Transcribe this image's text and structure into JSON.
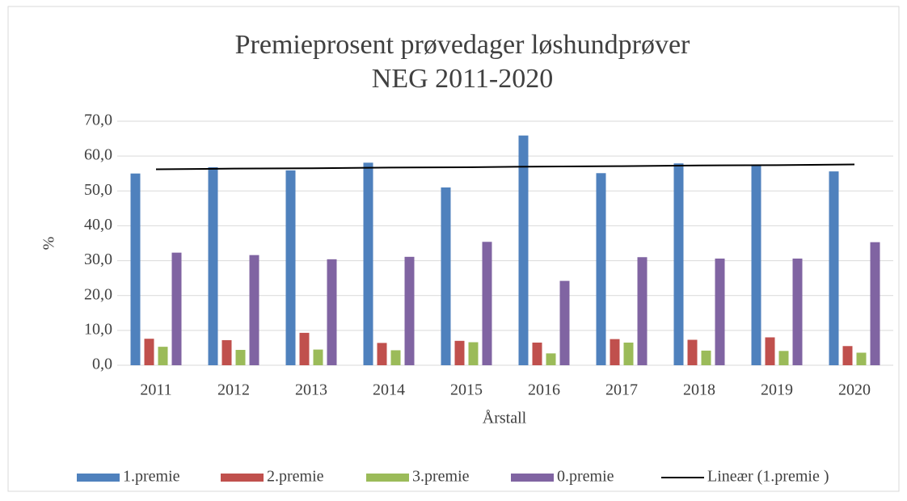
{
  "chart_data": {
    "type": "bar",
    "title": [
      "Premieprosent prøvedager løshundprøver",
      "NEG 2011-2020"
    ],
    "x_label": "Årstall",
    "y_label": "%",
    "categories": [
      "2011",
      "2012",
      "2013",
      "2014",
      "2015",
      "2016",
      "2017",
      "2018",
      "2019",
      "2020"
    ],
    "series": [
      {
        "name": "1.premie",
        "color": "#4f81bd",
        "values": [
          55.0,
          56.8,
          55.9,
          58.1,
          51.0,
          65.9,
          55.1,
          57.9,
          57.4,
          55.6
        ]
      },
      {
        "name": "2.premie",
        "color": "#c0504d",
        "values": [
          7.6,
          7.2,
          9.3,
          6.4,
          7.0,
          6.5,
          7.5,
          7.3,
          8.0,
          5.5
        ]
      },
      {
        "name": "3.premie",
        "color": "#9bbb59",
        "values": [
          5.3,
          4.4,
          4.5,
          4.3,
          6.6,
          3.4,
          6.5,
          4.2,
          4.1,
          3.6
        ]
      },
      {
        "name": "0.premie",
        "color": "#8064a2",
        "values": [
          32.3,
          31.6,
          30.4,
          31.1,
          35.4,
          24.2,
          31.0,
          30.6,
          30.6,
          35.3
        ]
      }
    ],
    "trendline": {
      "name": "Lineær (1.premie )",
      "color": "#000000",
      "values": [
        56.2,
        56.4,
        56.5,
        56.7,
        56.8,
        57.0,
        57.1,
        57.3,
        57.4,
        57.6
      ]
    },
    "ylim": [
      0,
      70
    ],
    "yticks": [
      {
        "value": 0,
        "label": "0,0"
      },
      {
        "value": 10,
        "label": "10,0"
      },
      {
        "value": 20,
        "label": "20,0"
      },
      {
        "value": 30,
        "label": "30,0"
      },
      {
        "value": 40,
        "label": "40,0"
      },
      {
        "value": 50,
        "label": "50,0"
      },
      {
        "value": 60,
        "label": "60,0"
      },
      {
        "value": 70,
        "label": "70,0"
      }
    ],
    "grid": true,
    "legend": "bottom"
  }
}
